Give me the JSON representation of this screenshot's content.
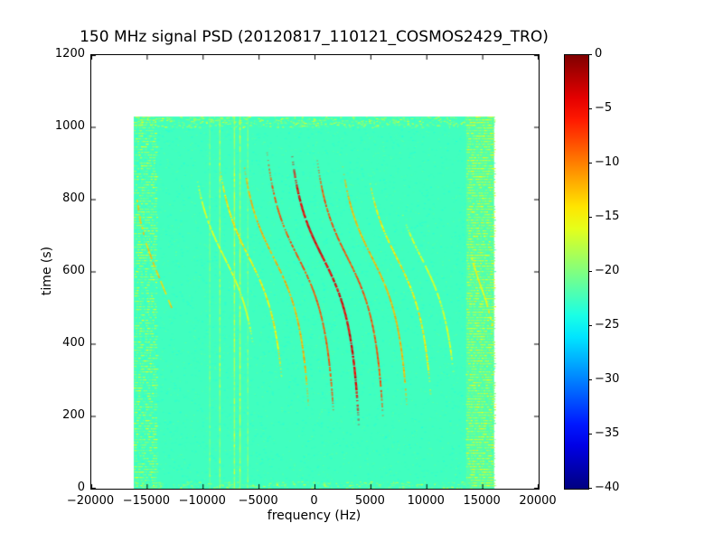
{
  "chart_data": {
    "type": "heatmap",
    "title": "150 MHz signal PSD (20120817_110121_COSMOS2429_TRO)",
    "xlabel": "frequency (Hz)",
    "ylabel": "time (s)",
    "xlim": [
      -20000,
      20000
    ],
    "ylim": [
      0,
      1200
    ],
    "xticks": [
      -20000,
      -15000,
      -10000,
      -5000,
      0,
      5000,
      10000,
      15000,
      20000
    ],
    "yticks": [
      0,
      200,
      400,
      600,
      800,
      1000,
      1200
    ],
    "colorbar": {
      "colormap": "jet",
      "range": [
        -40,
        0
      ],
      "ticks": [
        0,
        -5,
        -10,
        -15,
        -20,
        -25,
        -30,
        -35,
        -40
      ]
    },
    "extent": {
      "freq": [
        -16200,
        16000
      ],
      "time": [
        0,
        1030
      ]
    },
    "background_db": -22.5,
    "noise_bands": [
      {
        "freq": [
          -16200,
          -14200
        ],
        "db": [
          -24,
          -15
        ],
        "count": 2600
      },
      {
        "freq": [
          13500,
          16000
        ],
        "db": [
          -23,
          -14
        ],
        "count": 4200,
        "fill_db": -21.8
      }
    ],
    "edge_rows": [
      {
        "time": [
          1000,
          1030
        ],
        "count": 700,
        "db": [
          -22,
          -15
        ]
      },
      {
        "time": [
          0,
          20
        ],
        "count": 350,
        "db": [
          -22,
          -16
        ]
      }
    ],
    "vertical_lines": [
      {
        "freq": -9400,
        "db": -20
      },
      {
        "freq": -8500,
        "db": -18.5
      },
      {
        "freq": -7200,
        "db": -17
      },
      {
        "freq": -6700,
        "db": -17.5
      },
      {
        "freq": -6000,
        "db": -20
      }
    ],
    "doppler": {
      "t_center": 640,
      "tau": 160,
      "b_hz": 2600
    },
    "traces": [
      {
        "f0": -8100,
        "db": -16,
        "t": [
          400,
          870
        ]
      },
      {
        "f0": -5900,
        "db": -14,
        "t": [
          300,
          900
        ]
      },
      {
        "f0": -3700,
        "db": -12,
        "t": [
          230,
          920
        ]
      },
      {
        "f0": -1500,
        "db": -8,
        "t": [
          190,
          935
        ]
      },
      {
        "f0": 700,
        "db": -4,
        "t": [
          170,
          940
        ]
      },
      {
        "f0": 2900,
        "db": -8,
        "t": [
          180,
          930
        ]
      },
      {
        "f0": 5100,
        "db": -12,
        "t": [
          220,
          900
        ]
      },
      {
        "f0": 7300,
        "db": -14,
        "t": [
          260,
          860
        ]
      },
      {
        "f0": 9500,
        "db": -16,
        "t": [
          320,
          760
        ]
      }
    ],
    "arcs": [
      {
        "db": -13,
        "points": [
          [
            -12800,
            500
          ],
          [
            -13600,
            560
          ],
          [
            -14400,
            620
          ],
          [
            -15100,
            680
          ],
          [
            -15600,
            740
          ],
          [
            -15900,
            800
          ]
        ]
      },
      {
        "db": -15,
        "points": [
          [
            15900,
            450
          ],
          [
            15300,
            520
          ],
          [
            14600,
            580
          ],
          [
            14000,
            640
          ]
        ]
      }
    ]
  }
}
